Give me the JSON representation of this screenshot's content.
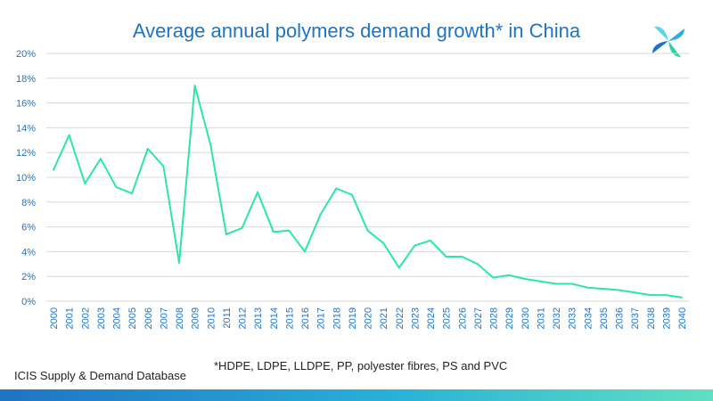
{
  "title": "Average annual polymers demand growth* in China",
  "source": "ICIS Supply & Demand Database",
  "footnote": "*HDPE, LDPE, LLDPE, PP, polyester fibres, PS and PVC",
  "colors": {
    "title": "#1f73c4",
    "axis_text": "#1f73c4",
    "line": "#2ee6a3",
    "grid": "#d9d9d9"
  },
  "logo": "icis-pinwheel-logo",
  "chart_data": {
    "type": "line",
    "title": "Average annual polymers demand growth* in China",
    "xlabel": "",
    "ylabel": "",
    "ylim": [
      0,
      20
    ],
    "y_ticks": [
      "0%",
      "2%",
      "4%",
      "6%",
      "8%",
      "10%",
      "12%",
      "14%",
      "16%",
      "18%",
      "20%"
    ],
    "grid": true,
    "legend": "none",
    "categories": [
      "2000",
      "2001",
      "2002",
      "2003",
      "2004",
      "2005",
      "2006",
      "2007",
      "2008",
      "2009",
      "2010",
      "2011",
      "2012",
      "2013",
      "2014",
      "2015",
      "2016",
      "2017",
      "2018",
      "2019",
      "2020",
      "2021",
      "2022",
      "2023",
      "2024",
      "2025",
      "2026",
      "2027",
      "2028",
      "2029",
      "2030",
      "2031",
      "2032",
      "2033",
      "2034",
      "2035",
      "2036",
      "2037",
      "2038",
      "2039",
      "2040"
    ],
    "series": [
      {
        "values": [
          10.6,
          13.4,
          9.5,
          11.5,
          9.2,
          8.7,
          12.3,
          10.9,
          3.1,
          17.4,
          12.6,
          5.4,
          5.9,
          8.8,
          5.6,
          5.7,
          4.0,
          7.0,
          9.1,
          8.6,
          5.7,
          4.7,
          2.7,
          4.5,
          4.9,
          3.6,
          3.6,
          3.0,
          1.9,
          2.1,
          1.8,
          1.6,
          1.4,
          1.4,
          1.1,
          1.0,
          0.9,
          0.7,
          0.5,
          0.5,
          0.3
        ]
      }
    ]
  }
}
